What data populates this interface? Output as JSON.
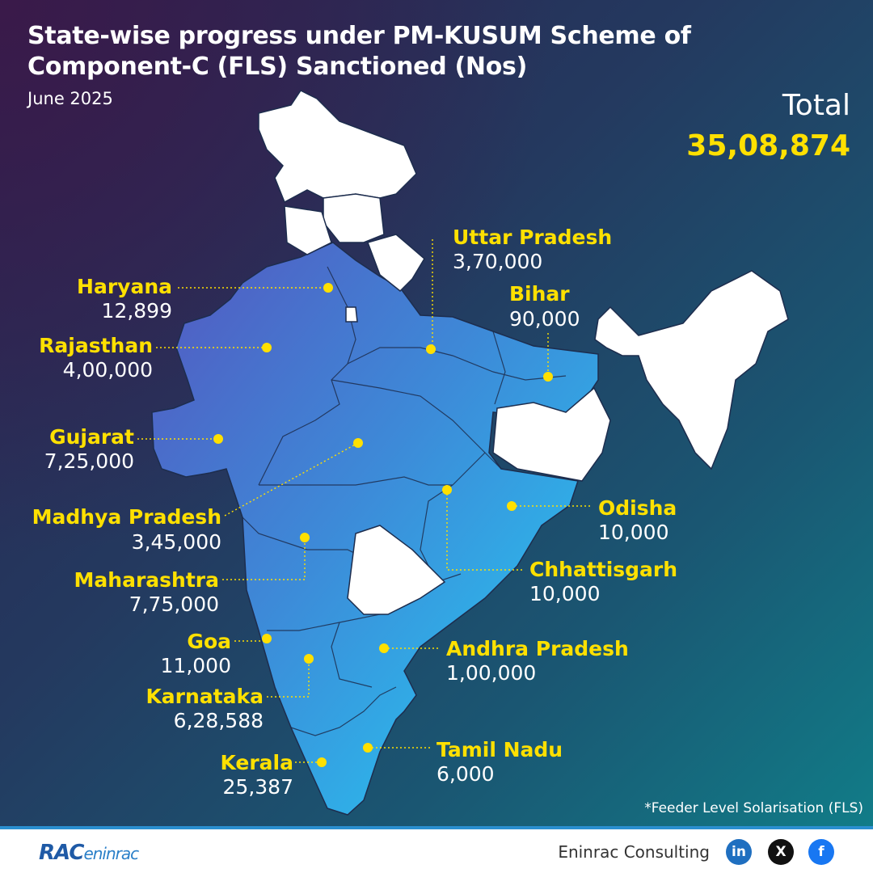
{
  "header": {
    "title": "State-wise progress under PM-KUSUM Scheme of Component-C (FLS) Sanctioned (Nos)",
    "date": "June 2025",
    "total_label": "Total",
    "total_value": "35,08,874"
  },
  "states": [
    {
      "id": "haryana",
      "name": "Haryana",
      "value": "12,899"
    },
    {
      "id": "rajasthan",
      "name": "Rajasthan",
      "value": "4,00,000"
    },
    {
      "id": "gujarat",
      "name": "Gujarat",
      "value": "7,25,000"
    },
    {
      "id": "madhya-pradesh",
      "name": "Madhya Pradesh",
      "value": "3,45,000"
    },
    {
      "id": "maharashtra",
      "name": "Maharashtra",
      "value": "7,75,000"
    },
    {
      "id": "goa",
      "name": "Goa",
      "value": "11,000"
    },
    {
      "id": "karnataka",
      "name": "Karnataka",
      "value": "6,28,588"
    },
    {
      "id": "kerala",
      "name": "Kerala",
      "value": "25,387"
    },
    {
      "id": "uttar-pradesh",
      "name": "Uttar Pradesh",
      "value": "3,70,000"
    },
    {
      "id": "bihar",
      "name": "Bihar",
      "value": "90,000"
    },
    {
      "id": "odisha",
      "name": "Odisha",
      "value": "10,000"
    },
    {
      "id": "chhattisgarh",
      "name": "Chhattisgarh",
      "value": "10,000"
    },
    {
      "id": "andhra-pradesh",
      "name": "Andhra Pradesh",
      "value": "1,00,000"
    },
    {
      "id": "tamil-nadu",
      "name": "Tamil Nadu",
      "value": "6,000"
    }
  ],
  "footnote": "*Feeder Level Solarisation (FLS)",
  "footer": {
    "logo_main": "RAC",
    "logo_sub": "eninrac",
    "company": "Eninrac Consulting",
    "social": [
      {
        "id": "linkedin",
        "icon": "linkedin-icon",
        "glyph": "in",
        "color": "#1f6fc0"
      },
      {
        "id": "x",
        "icon": "x-icon",
        "glyph": "X",
        "color": "#111111"
      },
      {
        "id": "facebook",
        "icon": "facebook-icon",
        "glyph": "f",
        "color": "#1877f2"
      }
    ]
  },
  "colors": {
    "marker": "#ffe000",
    "label": "#ffe000",
    "map_dark": "#4a62c0",
    "map_light": "#2ac8f2",
    "non_participating": "#ffffff"
  }
}
